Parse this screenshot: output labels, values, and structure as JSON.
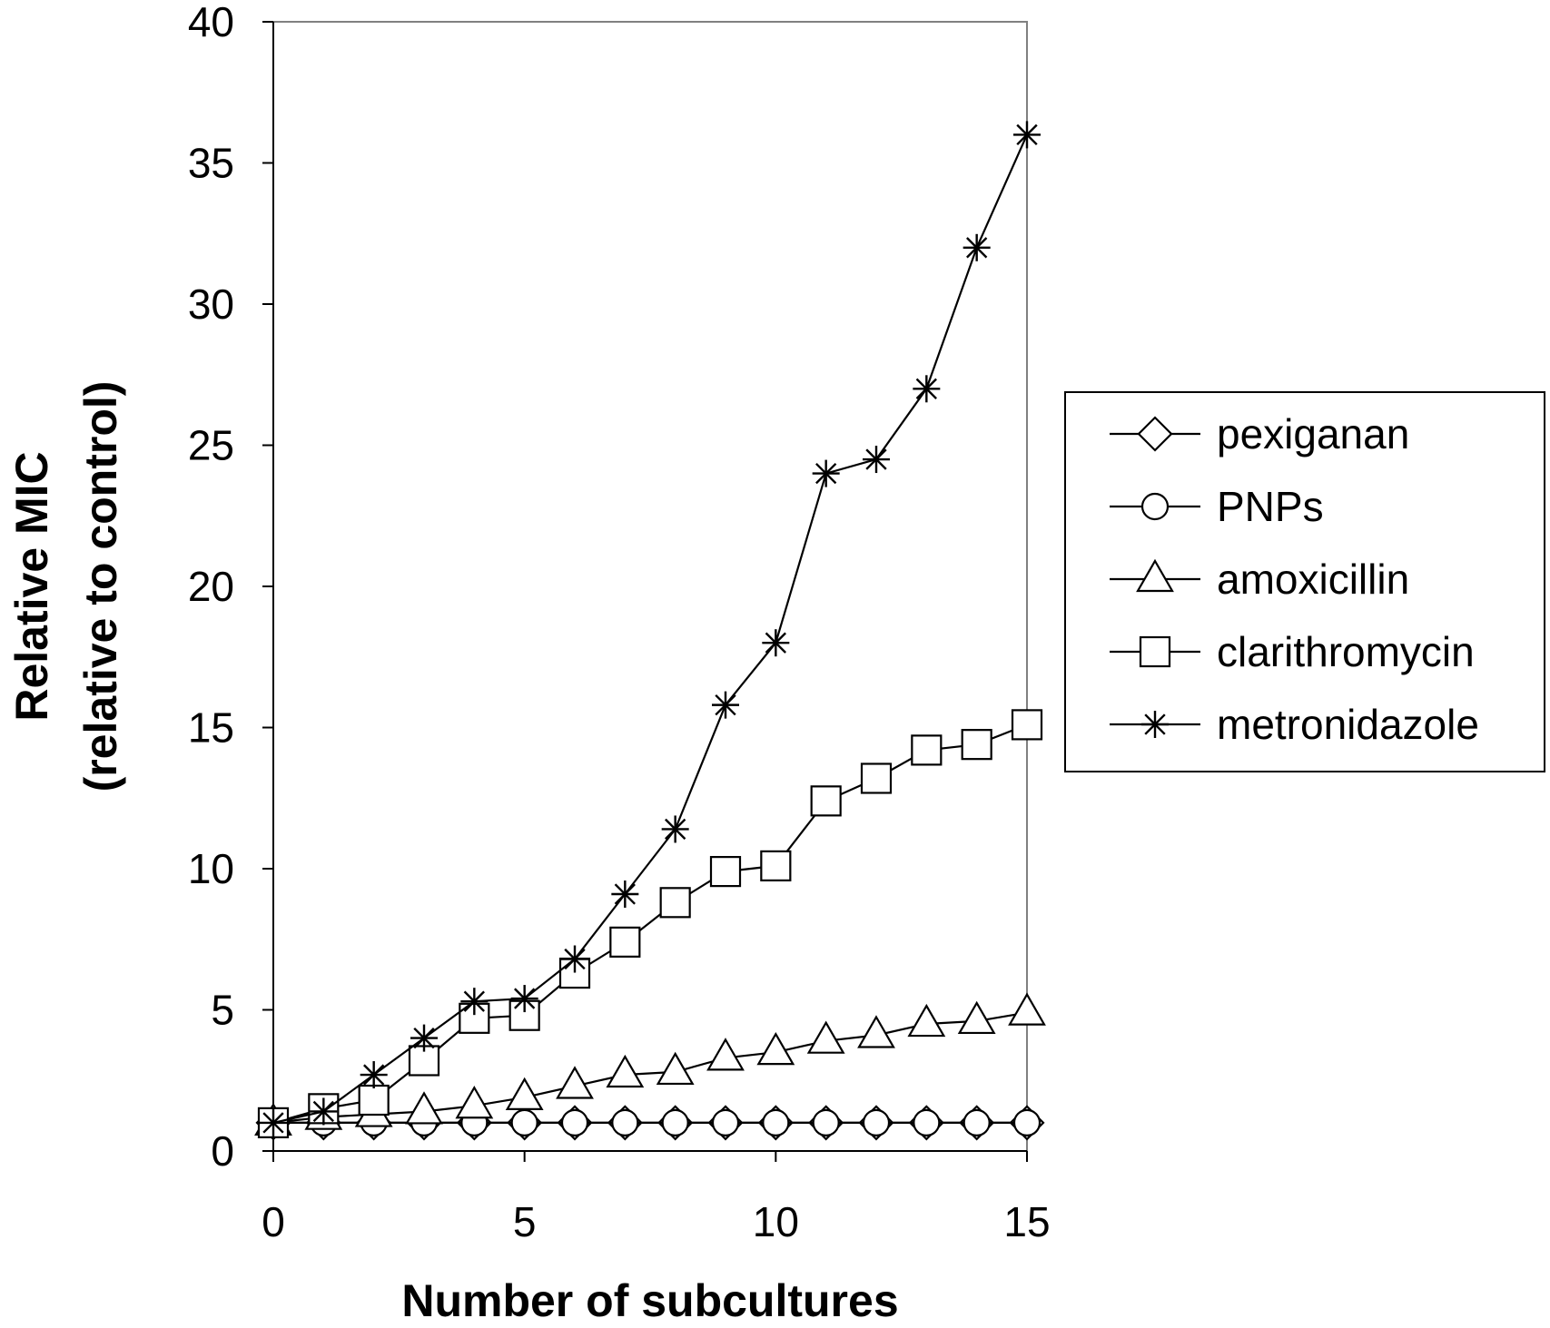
{
  "chart_data": {
    "type": "line",
    "title": "",
    "xlabel": "Number of subcultures",
    "ylabel": "Relative MIC",
    "ylabel_sub": "(relative to control)",
    "xlim": [
      0,
      15
    ],
    "ylim": [
      0,
      40
    ],
    "x_ticks": [
      "0",
      "5",
      "10",
      "15"
    ],
    "y_ticks": [
      "0",
      "5",
      "10",
      "15",
      "20",
      "25",
      "30",
      "35",
      "40"
    ],
    "grid": false,
    "legend_position": "right",
    "x": [
      0,
      1,
      2,
      3,
      4,
      5,
      6,
      7,
      8,
      9,
      10,
      11,
      12,
      13,
      14,
      15
    ],
    "series": [
      {
        "name": "pexiganan",
        "marker": "diamond",
        "values": [
          1,
          1,
          1,
          1,
          1,
          1,
          1,
          1,
          1,
          1,
          1,
          1,
          1,
          1,
          1,
          1
        ]
      },
      {
        "name": "PNPs",
        "marker": "circle",
        "values": [
          1,
          1,
          1,
          1,
          1,
          1,
          1,
          1,
          1,
          1,
          1,
          1,
          1,
          1,
          1,
          1
        ]
      },
      {
        "name": "amoxicillin",
        "marker": "triangle",
        "values": [
          1,
          1.2,
          1.3,
          1.4,
          1.6,
          1.9,
          2.3,
          2.7,
          2.8,
          3.3,
          3.5,
          3.9,
          4.1,
          4.5,
          4.6,
          4.9
        ]
      },
      {
        "name": "clarithromycin",
        "marker": "square",
        "values": [
          1,
          1.5,
          1.8,
          3.2,
          4.7,
          4.8,
          6.3,
          7.4,
          8.8,
          9.9,
          10.1,
          12.4,
          13.2,
          14.2,
          14.4,
          15.1
        ]
      },
      {
        "name": "metronidazole",
        "marker": "asterisk",
        "values": [
          1,
          1.4,
          2.7,
          4,
          5.3,
          5.4,
          6.8,
          9.1,
          11.4,
          15.8,
          18,
          24,
          24.5,
          27,
          32,
          36
        ]
      }
    ]
  }
}
